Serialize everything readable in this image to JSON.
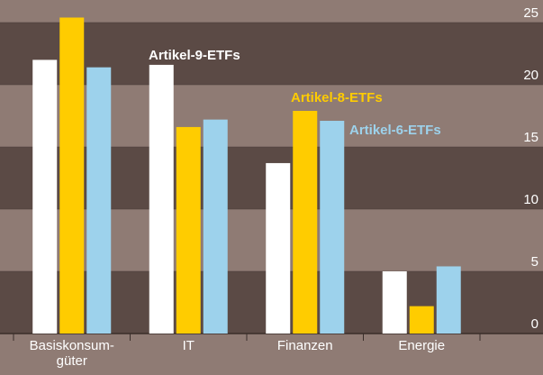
{
  "chart_data": {
    "type": "bar",
    "categories": [
      "Basiskonsum-\ngüter",
      "IT",
      "Finanzen",
      "Energie"
    ],
    "series": [
      {
        "name": "Artikel-9-ETFs",
        "color": "#ffffff",
        "values": [
          22.0,
          21.6,
          13.7,
          5.0
        ]
      },
      {
        "name": "Artikel-8-ETFs",
        "color": "#ffcc00",
        "values": [
          25.4,
          16.6,
          17.9,
          2.2
        ]
      },
      {
        "name": "Artikel-6-ETFs",
        "color": "#9dd2ec",
        "values": [
          21.4,
          17.2,
          17.1,
          5.4
        ]
      }
    ],
    "ylim": [
      0,
      25
    ],
    "yticks": [
      0,
      5,
      10,
      15,
      20,
      25
    ],
    "grid": true
  }
}
